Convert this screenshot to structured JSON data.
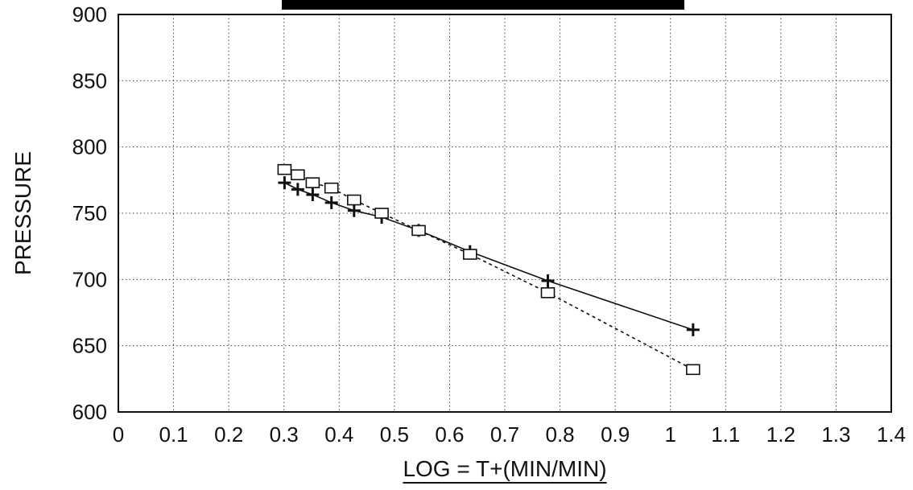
{
  "chart_data": {
    "type": "line",
    "title": "",
    "xlabel": "LOG = T+(MIN/MIN)",
    "ylabel": "PRESSURE",
    "xlim": [
      0,
      1.4
    ],
    "ylim": [
      600,
      900
    ],
    "xticks": [
      "0",
      "0.1",
      "0.2",
      "0.3",
      "0.4",
      "0.5",
      "0.6",
      "0.7",
      "0.8",
      "0.9",
      "1",
      "1.1",
      "1.2",
      "1.3",
      "1.4"
    ],
    "yticks": [
      "600",
      "650",
      "700",
      "750",
      "800",
      "850",
      "900"
    ],
    "grid": true,
    "legend": "none",
    "series": [
      {
        "marker": "plus",
        "line_style": "solid",
        "color": "#111111",
        "x": [
          0.301,
          0.325,
          0.352,
          0.386,
          0.427,
          0.477,
          0.544,
          0.637,
          0.778,
          1.041
        ],
        "y": [
          773,
          768,
          764,
          758,
          752,
          747,
          737,
          721,
          699,
          662
        ]
      },
      {
        "marker": "square",
        "line_style": "dashed",
        "color": "#111111",
        "x": [
          0.301,
          0.325,
          0.352,
          0.386,
          0.427,
          0.477,
          0.544,
          0.637,
          0.778,
          1.041
        ],
        "y": [
          783,
          779,
          773,
          769,
          760,
          750,
          737,
          719,
          690,
          632
        ]
      }
    ]
  }
}
